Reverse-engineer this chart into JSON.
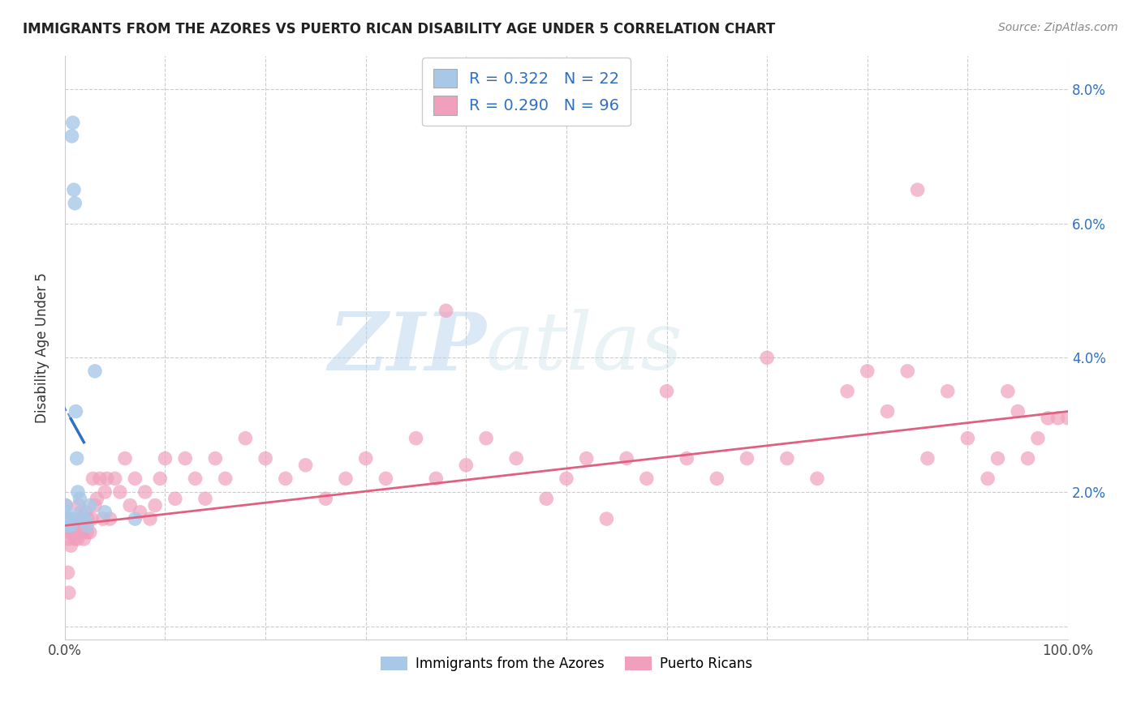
{
  "title": "IMMIGRANTS FROM THE AZORES VS PUERTO RICAN DISABILITY AGE UNDER 5 CORRELATION CHART",
  "source": "Source: ZipAtlas.com",
  "ylabel": "Disability Age Under 5",
  "xlim": [
    0,
    1.0
  ],
  "ylim": [
    -0.002,
    0.085
  ],
  "xticks": [
    0.0,
    0.1,
    0.2,
    0.3,
    0.4,
    0.5,
    0.6,
    0.7,
    0.8,
    0.9,
    1.0
  ],
  "xticklabels": [
    "0.0%",
    "",
    "",
    "",
    "",
    "",
    "",
    "",
    "",
    "",
    "100.0%"
  ],
  "yticks_right": [
    0.02,
    0.04,
    0.06,
    0.08
  ],
  "yticklabels_right": [
    "2.0%",
    "4.0%",
    "6.0%",
    "8.0%"
  ],
  "legend1_label": "R = 0.322   N = 22",
  "legend2_label": "R = 0.290   N = 96",
  "legend_label1": "Immigrants from the Azores",
  "legend_label2": "Puerto Ricans",
  "blue_color": "#a8c8e8",
  "pink_color": "#f0a0bc",
  "blue_line_color": "#3070c0",
  "pink_line_color": "#e06080",
  "watermark_text": "ZIPatlas",
  "blue_x": [
    0.001,
    0.002,
    0.003,
    0.004,
    0.005,
    0.006,
    0.007,
    0.008,
    0.009,
    0.01,
    0.011,
    0.012,
    0.013,
    0.015,
    0.016,
    0.018,
    0.02,
    0.022,
    0.025,
    0.03,
    0.04,
    0.07
  ],
  "blue_y": [
    0.018,
    0.017,
    0.016,
    0.015,
    0.016,
    0.015,
    0.073,
    0.075,
    0.065,
    0.063,
    0.032,
    0.025,
    0.02,
    0.019,
    0.017,
    0.016,
    0.016,
    0.015,
    0.018,
    0.038,
    0.017,
    0.016
  ],
  "pink_x": [
    0.001,
    0.002,
    0.003,
    0.004,
    0.005,
    0.006,
    0.007,
    0.008,
    0.009,
    0.01,
    0.011,
    0.012,
    0.013,
    0.014,
    0.015,
    0.016,
    0.017,
    0.018,
    0.019,
    0.02,
    0.021,
    0.022,
    0.023,
    0.025,
    0.027,
    0.028,
    0.03,
    0.032,
    0.035,
    0.038,
    0.04,
    0.042,
    0.045,
    0.05,
    0.055,
    0.06,
    0.065,
    0.07,
    0.075,
    0.08,
    0.085,
    0.09,
    0.095,
    0.1,
    0.11,
    0.12,
    0.13,
    0.14,
    0.15,
    0.16,
    0.18,
    0.2,
    0.22,
    0.24,
    0.26,
    0.28,
    0.3,
    0.32,
    0.35,
    0.37,
    0.38,
    0.4,
    0.42,
    0.45,
    0.48,
    0.5,
    0.52,
    0.54,
    0.56,
    0.58,
    0.6,
    0.62,
    0.65,
    0.68,
    0.7,
    0.72,
    0.75,
    0.78,
    0.8,
    0.82,
    0.84,
    0.85,
    0.86,
    0.88,
    0.9,
    0.92,
    0.93,
    0.94,
    0.95,
    0.96,
    0.97,
    0.98,
    0.99,
    1.0,
    0.003,
    0.004
  ],
  "pink_y": [
    0.018,
    0.016,
    0.014,
    0.013,
    0.015,
    0.012,
    0.015,
    0.014,
    0.016,
    0.013,
    0.015,
    0.014,
    0.013,
    0.018,
    0.015,
    0.016,
    0.014,
    0.016,
    0.013,
    0.015,
    0.017,
    0.014,
    0.016,
    0.014,
    0.016,
    0.022,
    0.018,
    0.019,
    0.022,
    0.016,
    0.02,
    0.022,
    0.016,
    0.022,
    0.02,
    0.025,
    0.018,
    0.022,
    0.017,
    0.02,
    0.016,
    0.018,
    0.022,
    0.025,
    0.019,
    0.025,
    0.022,
    0.019,
    0.025,
    0.022,
    0.028,
    0.025,
    0.022,
    0.024,
    0.019,
    0.022,
    0.025,
    0.022,
    0.028,
    0.022,
    0.047,
    0.024,
    0.028,
    0.025,
    0.019,
    0.022,
    0.025,
    0.016,
    0.025,
    0.022,
    0.035,
    0.025,
    0.022,
    0.025,
    0.04,
    0.025,
    0.022,
    0.035,
    0.038,
    0.032,
    0.038,
    0.065,
    0.025,
    0.035,
    0.028,
    0.022,
    0.025,
    0.035,
    0.032,
    0.025,
    0.028,
    0.031,
    0.031,
    0.031,
    0.008,
    0.005
  ],
  "blue_trend_x0": 0.0,
  "blue_trend_x_solid_start": 0.006,
  "blue_trend_x_solid_end": 0.019,
  "pink_trend_y0": 0.015,
  "pink_trend_y1": 0.032
}
